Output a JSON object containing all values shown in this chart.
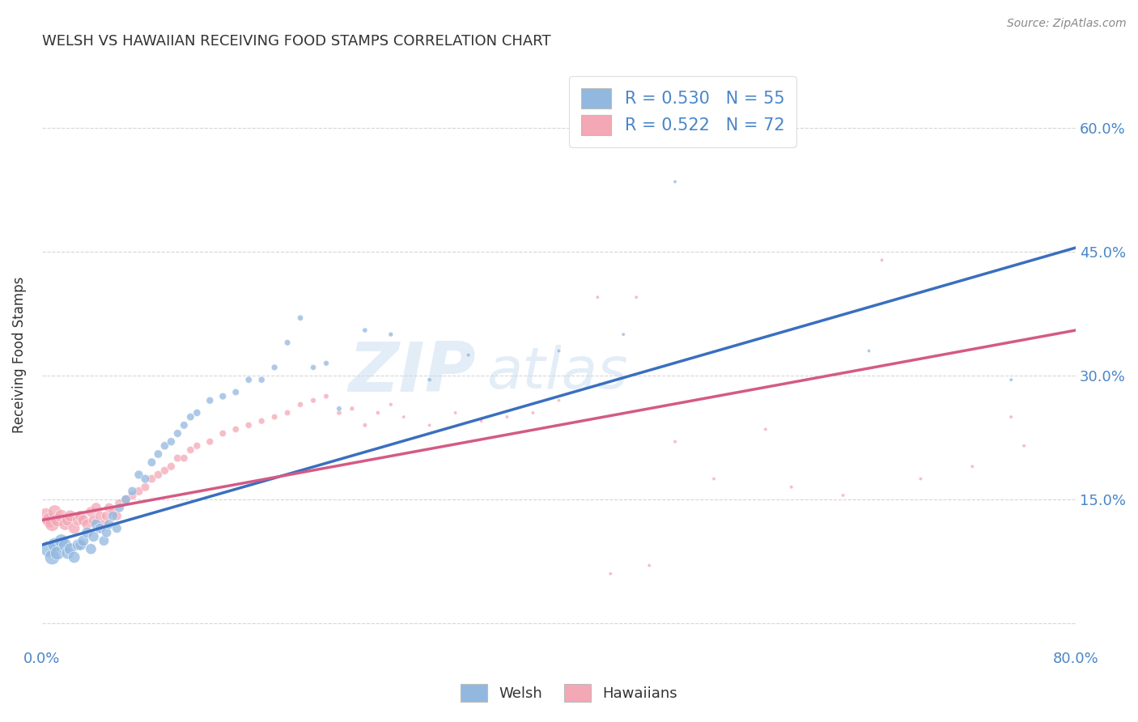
{
  "title": "WELSH VS HAWAIIAN RECEIVING FOOD STAMPS CORRELATION CHART",
  "source": "Source: ZipAtlas.com",
  "ylabel": "Receiving Food Stamps",
  "xlim": [
    0.0,
    0.8
  ],
  "ylim": [
    -0.03,
    0.68
  ],
  "yticks": [
    0.0,
    0.15,
    0.3,
    0.45,
    0.6
  ],
  "xticks": [
    0.0,
    0.1,
    0.2,
    0.3,
    0.4,
    0.5,
    0.6,
    0.7,
    0.8
  ],
  "xtick_labels": [
    "0.0%",
    "",
    "",
    "",
    "",
    "",
    "",
    "",
    "80.0%"
  ],
  "ytick_labels_right": [
    "",
    "15.0%",
    "30.0%",
    "45.0%",
    "60.0%"
  ],
  "welsh_color": "#92b8e0",
  "hawaiian_color": "#f4a7b5",
  "welsh_line_color": "#3a6fbe",
  "hawaiian_line_color": "#d45a85",
  "watermark_zip": "ZIP",
  "watermark_atlas": "atlas",
  "legend_welsh_R": "0.530",
  "legend_welsh_N": "55",
  "legend_hawaiian_R": "0.522",
  "legend_hawaiian_N": "72",
  "welsh_line_x0": 0.0,
  "welsh_line_y0": 0.095,
  "welsh_line_x1": 0.8,
  "welsh_line_y1": 0.455,
  "hawaiian_line_x0": 0.0,
  "hawaiian_line_y0": 0.125,
  "hawaiian_line_x1": 0.8,
  "hawaiian_line_y1": 0.355,
  "welsh_scatter_x": [
    0.005,
    0.008,
    0.01,
    0.012,
    0.015,
    0.018,
    0.02,
    0.022,
    0.025,
    0.028,
    0.03,
    0.032,
    0.035,
    0.038,
    0.04,
    0.042,
    0.045,
    0.048,
    0.05,
    0.052,
    0.055,
    0.058,
    0.06,
    0.065,
    0.07,
    0.075,
    0.08,
    0.085,
    0.09,
    0.095,
    0.1,
    0.105,
    0.11,
    0.115,
    0.12,
    0.13,
    0.14,
    0.15,
    0.16,
    0.17,
    0.18,
    0.19,
    0.2,
    0.21,
    0.22,
    0.23,
    0.25,
    0.27,
    0.3,
    0.33,
    0.4,
    0.45,
    0.49,
    0.64,
    0.75
  ],
  "welsh_scatter_y": [
    0.09,
    0.08,
    0.095,
    0.085,
    0.1,
    0.095,
    0.085,
    0.09,
    0.08,
    0.095,
    0.095,
    0.1,
    0.11,
    0.09,
    0.105,
    0.12,
    0.115,
    0.1,
    0.11,
    0.12,
    0.13,
    0.115,
    0.14,
    0.15,
    0.16,
    0.18,
    0.175,
    0.195,
    0.205,
    0.215,
    0.22,
    0.23,
    0.24,
    0.25,
    0.255,
    0.27,
    0.275,
    0.28,
    0.295,
    0.295,
    0.31,
    0.34,
    0.37,
    0.31,
    0.315,
    0.26,
    0.355,
    0.35,
    0.295,
    0.325,
    0.33,
    0.35,
    0.535,
    0.33,
    0.295
  ],
  "hawaiian_scatter_x": [
    0.003,
    0.006,
    0.008,
    0.01,
    0.012,
    0.015,
    0.018,
    0.02,
    0.022,
    0.025,
    0.028,
    0.03,
    0.032,
    0.035,
    0.038,
    0.04,
    0.042,
    0.045,
    0.048,
    0.05,
    0.052,
    0.055,
    0.058,
    0.06,
    0.065,
    0.07,
    0.075,
    0.08,
    0.085,
    0.09,
    0.095,
    0.1,
    0.105,
    0.11,
    0.115,
    0.12,
    0.13,
    0.14,
    0.15,
    0.16,
    0.17,
    0.18,
    0.19,
    0.2,
    0.21,
    0.22,
    0.23,
    0.24,
    0.25,
    0.26,
    0.27,
    0.28,
    0.3,
    0.32,
    0.34,
    0.36,
    0.38,
    0.4,
    0.43,
    0.46,
    0.49,
    0.52,
    0.56,
    0.58,
    0.62,
    0.65,
    0.68,
    0.72,
    0.75,
    0.76,
    0.44,
    0.47
  ],
  "hawaiian_scatter_y": [
    0.13,
    0.125,
    0.12,
    0.135,
    0.125,
    0.13,
    0.12,
    0.125,
    0.13,
    0.115,
    0.125,
    0.13,
    0.125,
    0.12,
    0.135,
    0.125,
    0.14,
    0.13,
    0.12,
    0.13,
    0.14,
    0.135,
    0.13,
    0.145,
    0.15,
    0.155,
    0.16,
    0.165,
    0.175,
    0.18,
    0.185,
    0.19,
    0.2,
    0.2,
    0.21,
    0.215,
    0.22,
    0.23,
    0.235,
    0.24,
    0.245,
    0.25,
    0.255,
    0.265,
    0.27,
    0.275,
    0.255,
    0.26,
    0.24,
    0.255,
    0.265,
    0.25,
    0.24,
    0.255,
    0.245,
    0.25,
    0.255,
    0.27,
    0.395,
    0.395,
    0.22,
    0.175,
    0.235,
    0.165,
    0.155,
    0.44,
    0.175,
    0.19,
    0.25,
    0.215,
    0.06,
    0.07
  ],
  "welsh_scatter_sizes": [
    200,
    180,
    160,
    150,
    140,
    130,
    120,
    115,
    110,
    105,
    100,
    98,
    95,
    92,
    90,
    88,
    85,
    82,
    80,
    78,
    75,
    72,
    70,
    68,
    65,
    62,
    60,
    58,
    56,
    54,
    52,
    50,
    48,
    46,
    44,
    42,
    40,
    38,
    36,
    34,
    32,
    30,
    28,
    26,
    24,
    22,
    20,
    18,
    16,
    14,
    12,
    10,
    10,
    10,
    10
  ],
  "hawaiian_scatter_sizes": [
    200,
    180,
    160,
    150,
    140,
    130,
    120,
    115,
    110,
    105,
    100,
    98,
    95,
    92,
    90,
    88,
    85,
    82,
    80,
    78,
    75,
    72,
    70,
    68,
    65,
    62,
    60,
    58,
    56,
    54,
    52,
    50,
    48,
    46,
    44,
    42,
    40,
    38,
    36,
    34,
    32,
    30,
    28,
    26,
    24,
    22,
    20,
    18,
    16,
    14,
    12,
    10,
    10,
    10,
    10,
    10,
    10,
    10,
    10,
    10,
    10,
    10,
    10,
    10,
    10,
    10,
    10,
    10,
    10,
    10,
    10,
    10
  ],
  "background_color": "#ffffff",
  "grid_color": "#cccccc",
  "title_color": "#333333",
  "tick_label_color": "#4a86c8"
}
